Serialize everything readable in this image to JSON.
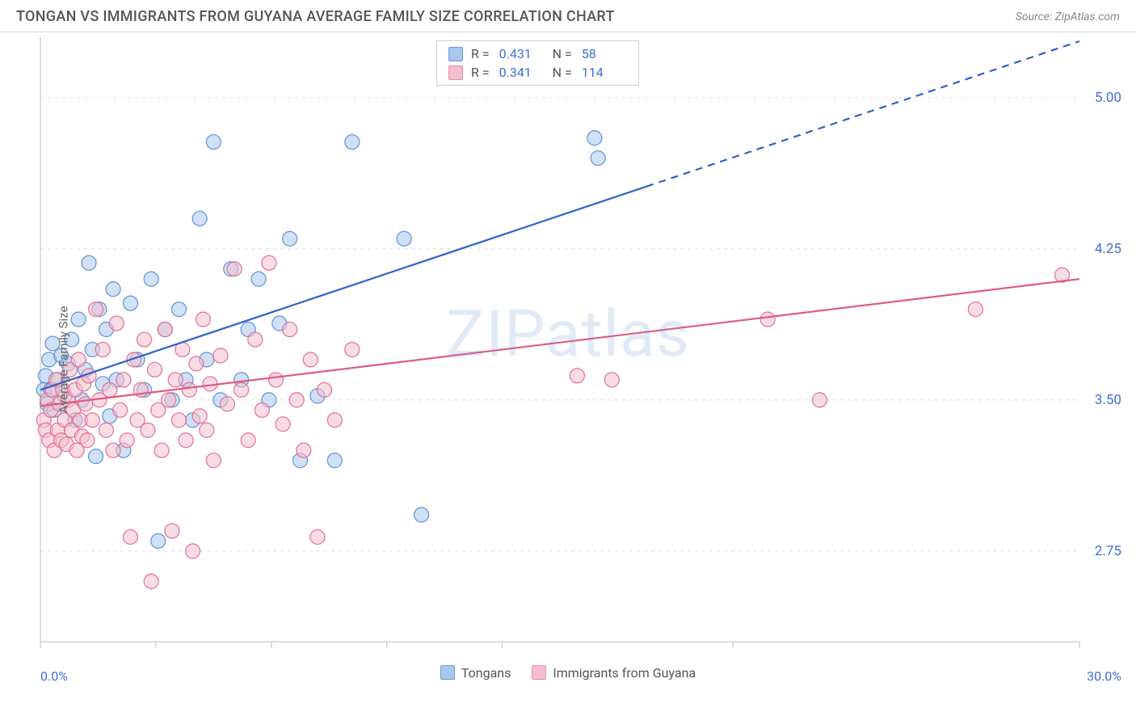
{
  "header": {
    "title": "TONGAN VS IMMIGRANTS FROM GUYANA AVERAGE FAMILY SIZE CORRELATION CHART",
    "source": "Source: ZipAtlas.com"
  },
  "chart": {
    "type": "scatter",
    "watermark": "ZIPatlas",
    "ylabel": "Average Family Size",
    "xlim": [
      0,
      30
    ],
    "ylim": [
      2.3,
      5.3
    ],
    "x_axis_start_label": "0.0%",
    "x_axis_end_label": "30.0%",
    "y_ticks": [
      2.75,
      3.5,
      4.25,
      5.0
    ],
    "y_tick_labels": [
      "2.75",
      "3.50",
      "4.25",
      "5.00"
    ],
    "x_ticks": [
      0,
      3.33,
      6.67,
      10,
      13.33,
      20,
      30
    ],
    "grid_color": "#dcdcdc",
    "axis_color": "#d0d0d0",
    "plot_bg": "#ffffff",
    "stats": [
      {
        "color_fill": "#a9c7ec",
        "color_stroke": "#6b9edf",
        "R": "0.431",
        "N": "58"
      },
      {
        "color_fill": "#f3bfcd",
        "color_stroke": "#e98fab",
        "R": "0.341",
        "N": "114"
      }
    ],
    "legend": [
      {
        "label": "Tongans",
        "fill": "#a9c7ec",
        "stroke": "#6b9edf"
      },
      {
        "label": "Immigrants from Guyana",
        "fill": "#f3bfcd",
        "stroke": "#e98fab"
      }
    ],
    "series": [
      {
        "name": "Tongans",
        "marker_fill": "#a9c7ec",
        "marker_stroke": "#5b8fd6",
        "marker_opacity": 0.55,
        "marker_radius": 9,
        "trend": {
          "x1": 0,
          "y1": 3.55,
          "x2": 30,
          "y2": 5.28,
          "solid_to_x": 17.5,
          "color": "#2f62c9",
          "width": 2.2
        },
        "points": [
          [
            0.1,
            3.55
          ],
          [
            0.15,
            3.62
          ],
          [
            0.2,
            3.48
          ],
          [
            0.25,
            3.7
          ],
          [
            0.3,
            3.55
          ],
          [
            0.35,
            3.78
          ],
          [
            0.4,
            3.45
          ],
          [
            0.5,
            3.6
          ],
          [
            0.6,
            3.72
          ],
          [
            0.7,
            3.52
          ],
          [
            0.8,
            3.68
          ],
          [
            0.9,
            3.8
          ],
          [
            1.0,
            3.4
          ],
          [
            1.1,
            3.9
          ],
          [
            1.2,
            3.5
          ],
          [
            1.3,
            3.65
          ],
          [
            1.4,
            4.18
          ],
          [
            1.5,
            3.75
          ],
          [
            1.6,
            3.22
          ],
          [
            1.7,
            3.95
          ],
          [
            1.8,
            3.58
          ],
          [
            1.9,
            3.85
          ],
          [
            2.0,
            3.42
          ],
          [
            2.1,
            4.05
          ],
          [
            2.2,
            3.6
          ],
          [
            2.4,
            3.25
          ],
          [
            2.6,
            3.98
          ],
          [
            2.8,
            3.7
          ],
          [
            3.0,
            3.55
          ],
          [
            3.2,
            4.1
          ],
          [
            3.4,
            2.8
          ],
          [
            3.6,
            3.85
          ],
          [
            3.8,
            3.5
          ],
          [
            4.0,
            3.95
          ],
          [
            4.2,
            3.6
          ],
          [
            4.4,
            3.4
          ],
          [
            4.6,
            4.4
          ],
          [
            4.8,
            3.7
          ],
          [
            5.0,
            4.78
          ],
          [
            5.2,
            3.5
          ],
          [
            5.5,
            4.15
          ],
          [
            5.8,
            3.6
          ],
          [
            6.0,
            3.85
          ],
          [
            6.3,
            4.1
          ],
          [
            6.6,
            3.5
          ],
          [
            6.9,
            3.88
          ],
          [
            7.2,
            4.3
          ],
          [
            7.5,
            3.2
          ],
          [
            8.0,
            3.52
          ],
          [
            8.5,
            3.2
          ],
          [
            9.0,
            4.78
          ],
          [
            10.5,
            4.3
          ],
          [
            11.0,
            2.93
          ],
          [
            16.0,
            4.8
          ],
          [
            16.1,
            4.7
          ]
        ]
      },
      {
        "name": "Immigrants from Guyana",
        "marker_fill": "#f3bfcd",
        "marker_stroke": "#e26b8e",
        "marker_opacity": 0.55,
        "marker_radius": 9,
        "trend": {
          "x1": 0,
          "y1": 3.47,
          "x2": 30,
          "y2": 4.1,
          "solid_to_x": 30,
          "color": "#e05a82",
          "width": 2.2
        },
        "points": [
          [
            0.1,
            3.4
          ],
          [
            0.15,
            3.35
          ],
          [
            0.2,
            3.5
          ],
          [
            0.25,
            3.3
          ],
          [
            0.3,
            3.45
          ],
          [
            0.35,
            3.55
          ],
          [
            0.4,
            3.25
          ],
          [
            0.45,
            3.6
          ],
          [
            0.5,
            3.35
          ],
          [
            0.55,
            3.48
          ],
          [
            0.6,
            3.3
          ],
          [
            0.65,
            3.55
          ],
          [
            0.7,
            3.4
          ],
          [
            0.75,
            3.28
          ],
          [
            0.8,
            3.5
          ],
          [
            0.85,
            3.65
          ],
          [
            0.9,
            3.35
          ],
          [
            0.95,
            3.45
          ],
          [
            1.0,
            3.55
          ],
          [
            1.05,
            3.25
          ],
          [
            1.1,
            3.7
          ],
          [
            1.15,
            3.4
          ],
          [
            1.2,
            3.32
          ],
          [
            1.25,
            3.58
          ],
          [
            1.3,
            3.48
          ],
          [
            1.35,
            3.3
          ],
          [
            1.4,
            3.62
          ],
          [
            1.5,
            3.4
          ],
          [
            1.6,
            3.95
          ],
          [
            1.7,
            3.5
          ],
          [
            1.8,
            3.75
          ],
          [
            1.9,
            3.35
          ],
          [
            2.0,
            3.55
          ],
          [
            2.1,
            3.25
          ],
          [
            2.2,
            3.88
          ],
          [
            2.3,
            3.45
          ],
          [
            2.4,
            3.6
          ],
          [
            2.5,
            3.3
          ],
          [
            2.6,
            2.82
          ],
          [
            2.7,
            3.7
          ],
          [
            2.8,
            3.4
          ],
          [
            2.9,
            3.55
          ],
          [
            3.0,
            3.8
          ],
          [
            3.1,
            3.35
          ],
          [
            3.2,
            2.6
          ],
          [
            3.3,
            3.65
          ],
          [
            3.4,
            3.45
          ],
          [
            3.5,
            3.25
          ],
          [
            3.6,
            3.85
          ],
          [
            3.7,
            3.5
          ],
          [
            3.8,
            2.85
          ],
          [
            3.9,
            3.6
          ],
          [
            4.0,
            3.4
          ],
          [
            4.1,
            3.75
          ],
          [
            4.2,
            3.3
          ],
          [
            4.3,
            3.55
          ],
          [
            4.4,
            2.75
          ],
          [
            4.5,
            3.68
          ],
          [
            4.6,
            3.42
          ],
          [
            4.7,
            3.9
          ],
          [
            4.8,
            3.35
          ],
          [
            4.9,
            3.58
          ],
          [
            5.0,
            3.2
          ],
          [
            5.2,
            3.72
          ],
          [
            5.4,
            3.48
          ],
          [
            5.6,
            4.15
          ],
          [
            5.8,
            3.55
          ],
          [
            6.0,
            3.3
          ],
          [
            6.2,
            3.8
          ],
          [
            6.4,
            3.45
          ],
          [
            6.6,
            4.18
          ],
          [
            6.8,
            3.6
          ],
          [
            7.0,
            3.38
          ],
          [
            7.2,
            3.85
          ],
          [
            7.4,
            3.5
          ],
          [
            7.6,
            3.25
          ],
          [
            7.8,
            3.7
          ],
          [
            8.0,
            2.82
          ],
          [
            8.2,
            3.55
          ],
          [
            8.5,
            3.4
          ],
          [
            9.0,
            3.75
          ],
          [
            15.5,
            3.62
          ],
          [
            16.5,
            3.6
          ],
          [
            21.0,
            3.9
          ],
          [
            22.5,
            3.5
          ],
          [
            27.0,
            3.95
          ],
          [
            29.5,
            4.12
          ]
        ]
      }
    ]
  }
}
